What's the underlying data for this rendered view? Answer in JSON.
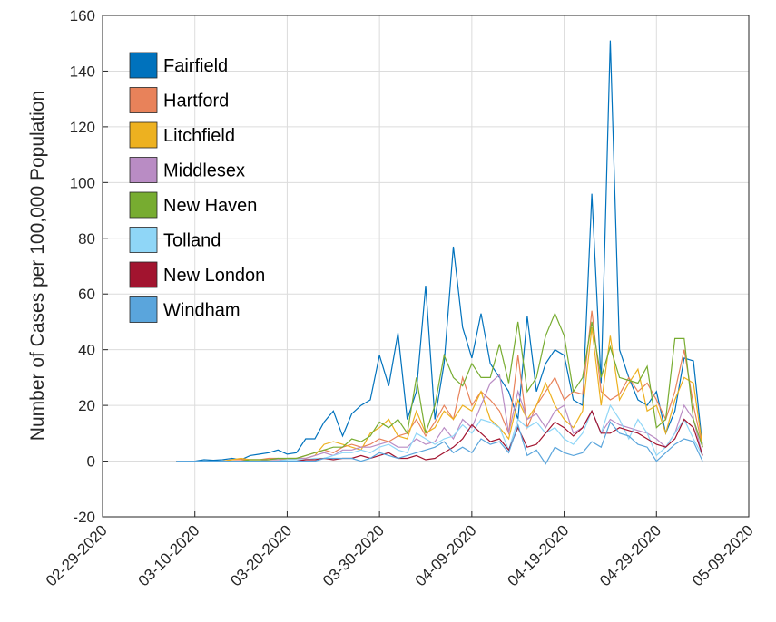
{
  "chart_data": {
    "type": "line",
    "ylabel": "Number of Cases per 100,000 Population",
    "x": [
      "03-08-2020",
      "03-09-2020",
      "03-10-2020",
      "03-11-2020",
      "03-12-2020",
      "03-13-2020",
      "03-14-2020",
      "03-15-2020",
      "03-16-2020",
      "03-17-2020",
      "03-18-2020",
      "03-19-2020",
      "03-20-2020",
      "03-21-2020",
      "03-22-2020",
      "03-23-2020",
      "03-24-2020",
      "03-25-2020",
      "03-26-2020",
      "03-27-2020",
      "03-28-2020",
      "03-29-2020",
      "03-30-2020",
      "03-31-2020",
      "04-01-2020",
      "04-02-2020",
      "04-03-2020",
      "04-04-2020",
      "04-05-2020",
      "04-06-2020",
      "04-07-2020",
      "04-08-2020",
      "04-09-2020",
      "04-10-2020",
      "04-11-2020",
      "04-12-2020",
      "04-13-2020",
      "04-14-2020",
      "04-15-2020",
      "04-16-2020",
      "04-17-2020",
      "04-18-2020",
      "04-19-2020",
      "04-20-2020",
      "04-21-2020",
      "04-22-2020",
      "04-23-2020",
      "04-24-2020",
      "04-25-2020",
      "04-26-2020",
      "04-27-2020",
      "04-28-2020",
      "04-29-2020",
      "04-30-2020",
      "05-01-2020",
      "05-02-2020",
      "05-03-2020",
      "05-04-2020"
    ],
    "series": [
      {
        "name": "Fairfield",
        "color": "#0072BD",
        "values": [
          0,
          0,
          0,
          0.5,
          0.3,
          0.5,
          1,
          0.5,
          2,
          2.5,
          3,
          4,
          2.5,
          3,
          8,
          8,
          14,
          18,
          9,
          17,
          20,
          22,
          38,
          27,
          46,
          15,
          25,
          63,
          15,
          35,
          77,
          48,
          37,
          53,
          35,
          30,
          25,
          15,
          52,
          25,
          35,
          40,
          38,
          22,
          20,
          96,
          28,
          151,
          40,
          30,
          22,
          20,
          25,
          10,
          18,
          37,
          36,
          5
        ]
      },
      {
        "name": "Hartford",
        "color": "#E8825A",
        "values": [
          0,
          0,
          0,
          0,
          0,
          0,
          0.5,
          0.5,
          0.5,
          0.5,
          1,
          1,
          0.5,
          1,
          2,
          3,
          4,
          3,
          5,
          6,
          5,
          6,
          8,
          7,
          9,
          10,
          15,
          9,
          14,
          20,
          15,
          30,
          20,
          25,
          22,
          18,
          10,
          38,
          12,
          20,
          25,
          30,
          22,
          25,
          24,
          54,
          25,
          22,
          24,
          30,
          25,
          28,
          22,
          15,
          25,
          40,
          20,
          5
        ]
      },
      {
        "name": "Litchfield",
        "color": "#EDB120",
        "values": [
          0,
          0,
          0,
          0,
          0,
          0,
          0.5,
          1,
          0.5,
          0.5,
          0.5,
          0.5,
          1,
          1,
          1,
          2,
          6,
          7,
          6,
          5,
          4,
          10,
          12,
          15,
          9,
          8,
          18,
          10,
          12,
          18,
          15,
          20,
          18,
          25,
          15,
          12,
          8,
          22,
          15,
          20,
          28,
          20,
          15,
          12,
          18,
          48,
          20,
          45,
          22,
          28,
          33,
          18,
          20,
          10,
          22,
          30,
          28,
          5
        ]
      },
      {
        "name": "Middlesex",
        "color": "#B98CC4",
        "values": [
          0,
          0,
          0,
          0,
          0,
          0,
          0,
          0,
          0,
          0,
          0.5,
          0.5,
          0.5,
          1,
          1,
          2,
          3,
          2,
          4,
          4,
          5,
          5,
          6,
          7,
          5,
          5,
          8,
          6,
          7,
          12,
          8,
          15,
          12,
          20,
          28,
          31,
          10,
          25,
          15,
          17,
          12,
          18,
          20,
          10,
          12,
          18,
          10,
          15,
          13,
          12,
          11,
          10,
          8,
          5,
          10,
          20,
          15,
          2
        ]
      },
      {
        "name": "New Haven",
        "color": "#77AC30",
        "values": [
          0,
          0,
          0,
          0,
          0,
          0,
          0,
          0,
          0.5,
          0.5,
          0.5,
          1,
          1,
          1,
          2,
          3,
          4,
          5,
          5,
          8,
          7,
          9,
          14,
          12,
          15,
          10,
          30,
          10,
          20,
          38,
          30,
          27,
          35,
          30,
          30,
          42,
          28,
          50,
          25,
          30,
          45,
          53,
          45,
          25,
          30,
          50,
          30,
          41,
          30,
          29,
          28,
          34,
          12,
          15,
          44,
          44,
          15,
          5
        ]
      },
      {
        "name": "Tolland",
        "color": "#8FD6F7",
        "values": [
          0,
          0,
          0,
          0,
          0,
          0,
          0,
          0,
          0,
          0,
          0,
          0,
          0.5,
          0.5,
          0.5,
          1,
          1,
          2,
          3,
          3,
          4,
          3,
          5,
          6,
          4,
          3,
          10,
          8,
          6,
          8,
          9,
          13,
          10,
          15,
          14,
          12,
          4,
          15,
          12,
          14,
          10,
          12,
          8,
          6,
          10,
          18,
          10,
          20,
          15,
          8,
          15,
          10,
          2,
          5,
          10,
          15,
          8,
          2
        ]
      },
      {
        "name": "New London",
        "color": "#A2142F",
        "values": [
          0,
          0,
          0,
          0,
          0,
          0,
          0,
          0,
          0,
          0,
          0,
          0,
          0,
          0,
          0.5,
          0.5,
          1,
          0.5,
          1,
          1,
          2,
          1,
          2,
          3,
          1,
          1,
          2,
          0.5,
          1,
          3,
          5,
          8,
          13,
          10,
          7,
          8,
          4,
          12,
          5,
          6,
          10,
          14,
          12,
          9,
          12,
          18,
          10,
          10,
          12,
          11,
          10,
          8,
          6,
          5,
          8,
          15,
          12,
          2
        ]
      },
      {
        "name": "Windham",
        "color": "#5AA5DC",
        "values": [
          0,
          0,
          0,
          0,
          0,
          0,
          0,
          0,
          0,
          0,
          0,
          0,
          0,
          0,
          0,
          0,
          1,
          1,
          1,
          1,
          0,
          1,
          3,
          2,
          1,
          2,
          3,
          4,
          5,
          7,
          3,
          5,
          3,
          8,
          6,
          7,
          3,
          13,
          2,
          4,
          -1,
          5,
          3,
          2,
          3,
          7,
          5,
          14,
          10,
          9,
          6,
          5,
          0,
          3,
          6,
          8,
          7,
          0
        ]
      }
    ],
    "xlim": [
      "02-29-2020",
      "05-09-2020"
    ],
    "xticks": [
      "02-29-2020",
      "03-10-2020",
      "03-20-2020",
      "03-30-2020",
      "04-09-2020",
      "04-19-2020",
      "04-29-2020",
      "05-09-2020"
    ],
    "ylim": [
      -20,
      160
    ],
    "yticks": [
      -20,
      0,
      20,
      40,
      60,
      80,
      100,
      120,
      140,
      160
    ],
    "grid": true,
    "legend": "upper left"
  }
}
